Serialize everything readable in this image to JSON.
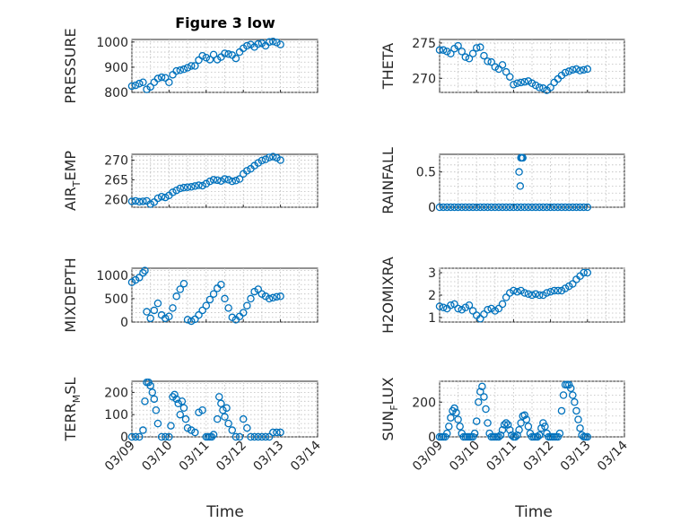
{
  "figure": {
    "title": "Figure 3 low",
    "time_label": "Time",
    "time_ticks": [
      "03/09",
      "03/10",
      "03/11",
      "03/12",
      "03/13",
      "03/14"
    ]
  },
  "chart_data": [
    {
      "type": "scatter",
      "ylabel": "PRESSURE",
      "xlim": [
        "03/09",
        "03/14"
      ],
      "ylim": [
        800,
        1010
      ],
      "yticks": [
        800,
        900,
        1000
      ],
      "grid": true,
      "x_days": [
        0,
        0.1,
        0.2,
        0.3,
        0.4,
        0.5,
        0.6,
        0.7,
        0.8,
        0.9,
        1.0,
        1.1,
        1.2,
        1.3,
        1.4,
        1.5,
        1.6,
        1.7,
        1.8,
        1.9,
        2.0,
        2.1,
        2.2,
        2.3,
        2.4,
        2.5,
        2.6,
        2.7,
        2.8,
        2.9,
        3.0,
        3.1,
        3.2,
        3.3,
        3.4,
        3.5,
        3.6,
        3.7,
        3.8,
        3.9,
        4.0
      ],
      "y": [
        825,
        828,
        835,
        840,
        812,
        822,
        840,
        855,
        860,
        858,
        840,
        870,
        885,
        888,
        892,
        898,
        905,
        905,
        928,
        945,
        938,
        930,
        950,
        930,
        940,
        955,
        952,
        948,
        935,
        960,
        975,
        985,
        990,
        980,
        992,
        995,
        985,
        1000,
        1002,
        998,
        990
      ]
    },
    {
      "type": "scatter",
      "ylabel": "THETA",
      "xlim": [
        "03/09",
        "03/14"
      ],
      "ylim": [
        268,
        275.5
      ],
      "yticks": [
        270,
        275
      ],
      "grid": true,
      "x_days": [
        0,
        0.1,
        0.2,
        0.3,
        0.4,
        0.5,
        0.6,
        0.7,
        0.8,
        0.9,
        1.0,
        1.1,
        1.2,
        1.3,
        1.4,
        1.5,
        1.6,
        1.7,
        1.8,
        1.9,
        2.0,
        2.1,
        2.2,
        2.3,
        2.4,
        2.5,
        2.6,
        2.7,
        2.8,
        2.9,
        3.0,
        3.1,
        3.2,
        3.3,
        3.4,
        3.5,
        3.6,
        3.7,
        3.8,
        3.9,
        4.0
      ],
      "y": [
        274,
        274,
        273.8,
        273.5,
        274.2,
        274.6,
        273.8,
        273,
        272.8,
        273.5,
        274.3,
        274.4,
        273.2,
        272.4,
        272.3,
        271.6,
        271.3,
        271.9,
        270.9,
        270.2,
        269.1,
        269.3,
        269.4,
        269.5,
        269.6,
        269.3,
        269,
        268.7,
        268.6,
        268.3,
        268.7,
        269.4,
        269.9,
        270.4,
        270.8,
        271,
        271.2,
        271.3,
        271.1,
        271.2,
        271.3
      ]
    },
    {
      "type": "scatter",
      "ylabel": "AIR_TEMP",
      "xlim": [
        "03/09",
        "03/14"
      ],
      "ylim": [
        258,
        271.5
      ],
      "yticks": [
        260,
        265,
        270
      ],
      "grid": true,
      "x_days": [
        0,
        0.1,
        0.2,
        0.3,
        0.4,
        0.5,
        0.6,
        0.7,
        0.8,
        0.9,
        1.0,
        1.1,
        1.2,
        1.3,
        1.4,
        1.5,
        1.6,
        1.7,
        1.8,
        1.9,
        2.0,
        2.1,
        2.2,
        2.3,
        2.4,
        2.5,
        2.6,
        2.7,
        2.8,
        2.9,
        3.0,
        3.1,
        3.2,
        3.3,
        3.4,
        3.5,
        3.6,
        3.7,
        3.8,
        3.9,
        4.0
      ],
      "y": [
        259.5,
        259.6,
        259.4,
        259.5,
        259.6,
        258.8,
        259.3,
        260.3,
        260.7,
        260.5,
        261,
        261.8,
        262.3,
        262.8,
        263,
        263.1,
        263.2,
        263.4,
        263.6,
        263.5,
        264,
        264.6,
        265,
        264.9,
        264.7,
        265.2,
        265,
        264.6,
        264.8,
        265.2,
        266.5,
        267.3,
        267.8,
        268.6,
        269.3,
        269.9,
        270.2,
        270.7,
        270.9,
        270.6,
        270
      ]
    },
    {
      "type": "scatter",
      "ylabel": "RAINFALL",
      "xlim": [
        "03/09",
        "03/14"
      ],
      "ylim": [
        0,
        0.75
      ],
      "yticks": [
        0,
        0.5
      ],
      "grid": true,
      "x_days": [
        0,
        0.1,
        0.2,
        0.3,
        0.4,
        0.5,
        0.6,
        0.7,
        0.8,
        0.9,
        1.0,
        1.1,
        1.2,
        1.3,
        1.4,
        1.5,
        1.6,
        1.7,
        1.8,
        1.9,
        2.0,
        2.1,
        2.2,
        2.3,
        2.4,
        2.5,
        2.6,
        2.7,
        2.8,
        2.9,
        3.0,
        3.1,
        3.2,
        3.3,
        3.4,
        3.5,
        3.6,
        3.7,
        3.8,
        3.9,
        4.0,
        2.15,
        2.18,
        2.2,
        2.22,
        2.25
      ],
      "y": [
        0,
        0,
        0,
        0,
        0,
        0,
        0,
        0,
        0,
        0,
        0,
        0,
        0,
        0,
        0,
        0,
        0,
        0,
        0,
        0,
        0,
        0,
        0,
        0,
        0,
        0,
        0,
        0,
        0,
        0,
        0,
        0,
        0,
        0,
        0,
        0,
        0,
        0,
        0,
        0,
        0,
        0.5,
        0.3,
        0.7,
        0.7,
        0.7
      ]
    },
    {
      "type": "scatter",
      "ylabel": "MIXDEPTH",
      "xlim": [
        "03/09",
        "03/14"
      ],
      "ylim": [
        0,
        1150
      ],
      "yticks": [
        0,
        500,
        1000
      ],
      "grid": true,
      "x_days": [
        0,
        0.1,
        0.2,
        0.3,
        0.35,
        0.4,
        0.5,
        0.6,
        0.7,
        0.8,
        0.9,
        1.0,
        1.1,
        1.2,
        1.3,
        1.4,
        1.5,
        1.6,
        1.7,
        1.8,
        1.9,
        2.0,
        2.1,
        2.2,
        2.3,
        2.4,
        2.5,
        2.6,
        2.7,
        2.8,
        2.9,
        3.0,
        3.1,
        3.2,
        3.3,
        3.4,
        3.5,
        3.6,
        3.7,
        3.8,
        3.9,
        4.0
      ],
      "y": [
        850,
        900,
        950,
        1050,
        1100,
        220,
        80,
        250,
        400,
        150,
        80,
        120,
        300,
        550,
        700,
        820,
        50,
        20,
        60,
        150,
        250,
        350,
        480,
        600,
        720,
        800,
        500,
        300,
        100,
        50,
        120,
        200,
        350,
        500,
        650,
        700,
        600,
        550,
        500,
        520,
        540,
        550
      ]
    },
    {
      "type": "scatter",
      "ylabel": "H2OMIXRA",
      "xlim": [
        "03/09",
        "03/14"
      ],
      "ylim": [
        0.8,
        3.2
      ],
      "yticks": [
        1,
        2,
        3
      ],
      "grid": true,
      "x_days": [
        0,
        0.1,
        0.2,
        0.3,
        0.4,
        0.5,
        0.6,
        0.7,
        0.8,
        0.9,
        1.0,
        1.1,
        1.2,
        1.3,
        1.4,
        1.5,
        1.6,
        1.7,
        1.8,
        1.9,
        2.0,
        2.1,
        2.2,
        2.3,
        2.4,
        2.5,
        2.6,
        2.7,
        2.8,
        2.9,
        3.0,
        3.1,
        3.2,
        3.3,
        3.4,
        3.5,
        3.6,
        3.7,
        3.8,
        3.9,
        4.0
      ],
      "y": [
        1.5,
        1.45,
        1.4,
        1.55,
        1.6,
        1.4,
        1.35,
        1.45,
        1.55,
        1.3,
        1.1,
        0.95,
        1.15,
        1.35,
        1.4,
        1.3,
        1.4,
        1.6,
        1.9,
        2.1,
        2.2,
        2.15,
        2.2,
        2.1,
        2.05,
        2.0,
        2.05,
        2.0,
        2.0,
        2.1,
        2.15,
        2.2,
        2.2,
        2.2,
        2.3,
        2.4,
        2.5,
        2.7,
        2.85,
        3.0,
        3.0
      ]
    },
    {
      "type": "scatter",
      "ylabel": "TERR_MSL",
      "xlim": [
        "03/09",
        "03/14"
      ],
      "ylim": [
        0,
        250
      ],
      "yticks": [
        0,
        100,
        200
      ],
      "grid": true,
      "x_days": [
        0,
        0.1,
        0.2,
        0.3,
        0.35,
        0.4,
        0.45,
        0.5,
        0.55,
        0.6,
        0.65,
        0.7,
        0.8,
        0.9,
        1.0,
        1.05,
        1.1,
        1.15,
        1.2,
        1.25,
        1.3,
        1.35,
        1.4,
        1.45,
        1.5,
        1.6,
        1.7,
        1.8,
        1.9,
        2.0,
        2.05,
        2.1,
        2.15,
        2.2,
        2.3,
        2.35,
        2.4,
        2.45,
        2.5,
        2.55,
        2.6,
        2.7,
        2.8,
        2.9,
        3.0,
        3.1,
        3.2,
        3.3,
        3.4,
        3.5,
        3.6,
        3.7,
        3.8,
        3.9,
        4.0
      ],
      "y": [
        0,
        0,
        0,
        30,
        160,
        245,
        245,
        230,
        200,
        170,
        120,
        60,
        0,
        0,
        0,
        50,
        180,
        190,
        170,
        150,
        100,
        160,
        130,
        80,
        40,
        30,
        20,
        110,
        120,
        0,
        0,
        0,
        0,
        10,
        80,
        180,
        150,
        120,
        90,
        130,
        60,
        30,
        0,
        0,
        80,
        40,
        0,
        0,
        0,
        0,
        0,
        0,
        20,
        20,
        20
      ]
    },
    {
      "type": "scatter",
      "ylabel": "SUN_FLUX",
      "xlim": [
        "03/09",
        "03/14"
      ],
      "ylim": [
        0,
        320
      ],
      "yticks": [
        0,
        200
      ],
      "grid": true,
      "x_days": [
        0,
        0.05,
        0.1,
        0.15,
        0.2,
        0.25,
        0.3,
        0.35,
        0.4,
        0.45,
        0.5,
        0.55,
        0.6,
        0.65,
        0.7,
        0.75,
        0.8,
        0.85,
        0.9,
        0.95,
        1.0,
        1.05,
        1.1,
        1.15,
        1.2,
        1.25,
        1.3,
        1.35,
        1.4,
        1.45,
        1.5,
        1.55,
        1.6,
        1.65,
        1.7,
        1.75,
        1.8,
        1.85,
        1.9,
        1.95,
        2.0,
        2.05,
        2.1,
        2.15,
        2.2,
        2.25,
        2.3,
        2.35,
        2.4,
        2.45,
        2.5,
        2.55,
        2.6,
        2.65,
        2.7,
        2.75,
        2.8,
        2.85,
        2.9,
        2.95,
        3.0,
        3.05,
        3.1,
        3.15,
        3.2,
        3.25,
        3.3,
        3.35,
        3.4,
        3.45,
        3.5,
        3.55,
        3.6,
        3.65,
        3.7,
        3.75,
        3.8,
        3.85,
        3.9,
        3.95,
        4.0
      ],
      "y": [
        0,
        0,
        0,
        0,
        20,
        60,
        110,
        150,
        165,
        140,
        100,
        60,
        20,
        0,
        0,
        0,
        0,
        0,
        0,
        20,
        90,
        200,
        260,
        290,
        230,
        160,
        80,
        20,
        0,
        0,
        0,
        0,
        0,
        10,
        40,
        70,
        80,
        70,
        40,
        10,
        0,
        0,
        10,
        40,
        80,
        120,
        125,
        100,
        60,
        20,
        0,
        0,
        0,
        0,
        10,
        50,
        80,
        60,
        20,
        0,
        0,
        0,
        0,
        0,
        0,
        20,
        150,
        240,
        300,
        300,
        300,
        280,
        240,
        200,
        150,
        100,
        50,
        10,
        0,
        0,
        0
      ]
    }
  ]
}
